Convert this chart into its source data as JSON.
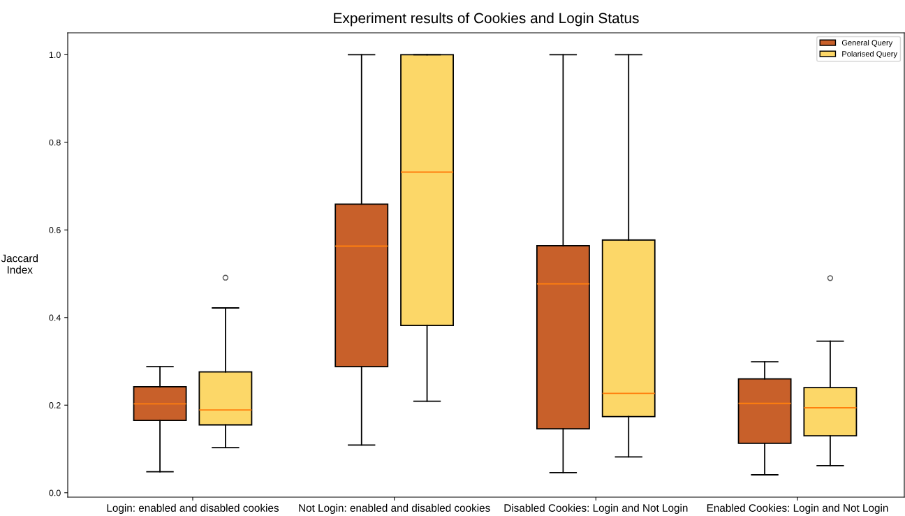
{
  "chart_data": {
    "type": "box",
    "title": "Experiment results of Cookies and Login Status",
    "ylabel": "Jaccard\nIndex",
    "categories": [
      "Login: enabled and disabled cookies",
      "Not Login: enabled and disabled cookies",
      "Disabled Cookies: Login and Not Login",
      "Enabled Cookies: Login and Not Login"
    ],
    "series": [
      {
        "name": "General Query",
        "color": "#c8602a",
        "boxes": [
          {
            "low": 0.048,
            "q1": 0.165,
            "median": 0.203,
            "q3": 0.242,
            "high": 0.288
          },
          {
            "low": 0.109,
            "q1": 0.288,
            "median": 0.563,
            "q3": 0.659,
            "high": 1.0
          },
          {
            "low": 0.046,
            "q1": 0.146,
            "median": 0.477,
            "q3": 0.564,
            "high": 1.0
          },
          {
            "low": 0.041,
            "q1": 0.113,
            "median": 0.204,
            "q3": 0.26,
            "high": 0.299
          }
        ]
      },
      {
        "name": "Polarised Query",
        "color": "#fcd768",
        "boxes": [
          {
            "low": 0.103,
            "q1": 0.155,
            "median": 0.189,
            "q3": 0.276,
            "high": 0.422,
            "outliers": [
              0.491
            ]
          },
          {
            "low": 0.209,
            "q1": 0.382,
            "median": 0.732,
            "q3": 1.0,
            "high": 1.0
          },
          {
            "low": 0.082,
            "q1": 0.174,
            "median": 0.227,
            "q3": 0.577,
            "high": 1.0
          },
          {
            "low": 0.062,
            "q1": 0.13,
            "median": 0.194,
            "q3": 0.24,
            "high": 0.346,
            "outliers": [
              0.49
            ]
          }
        ]
      }
    ],
    "ylim": [
      -0.01,
      1.05
    ],
    "yticks": [
      {
        "value": 0,
        "label": "0.0"
      },
      {
        "value": 0.2,
        "label": "0.2"
      },
      {
        "value": 0.4,
        "label": "0.4"
      },
      {
        "value": 0.6,
        "label": "0.6"
      },
      {
        "value": 0.8,
        "label": "0.8"
      },
      {
        "value": 1,
        "label": "1.0"
      }
    ],
    "grid": false,
    "legend": "top right"
  }
}
